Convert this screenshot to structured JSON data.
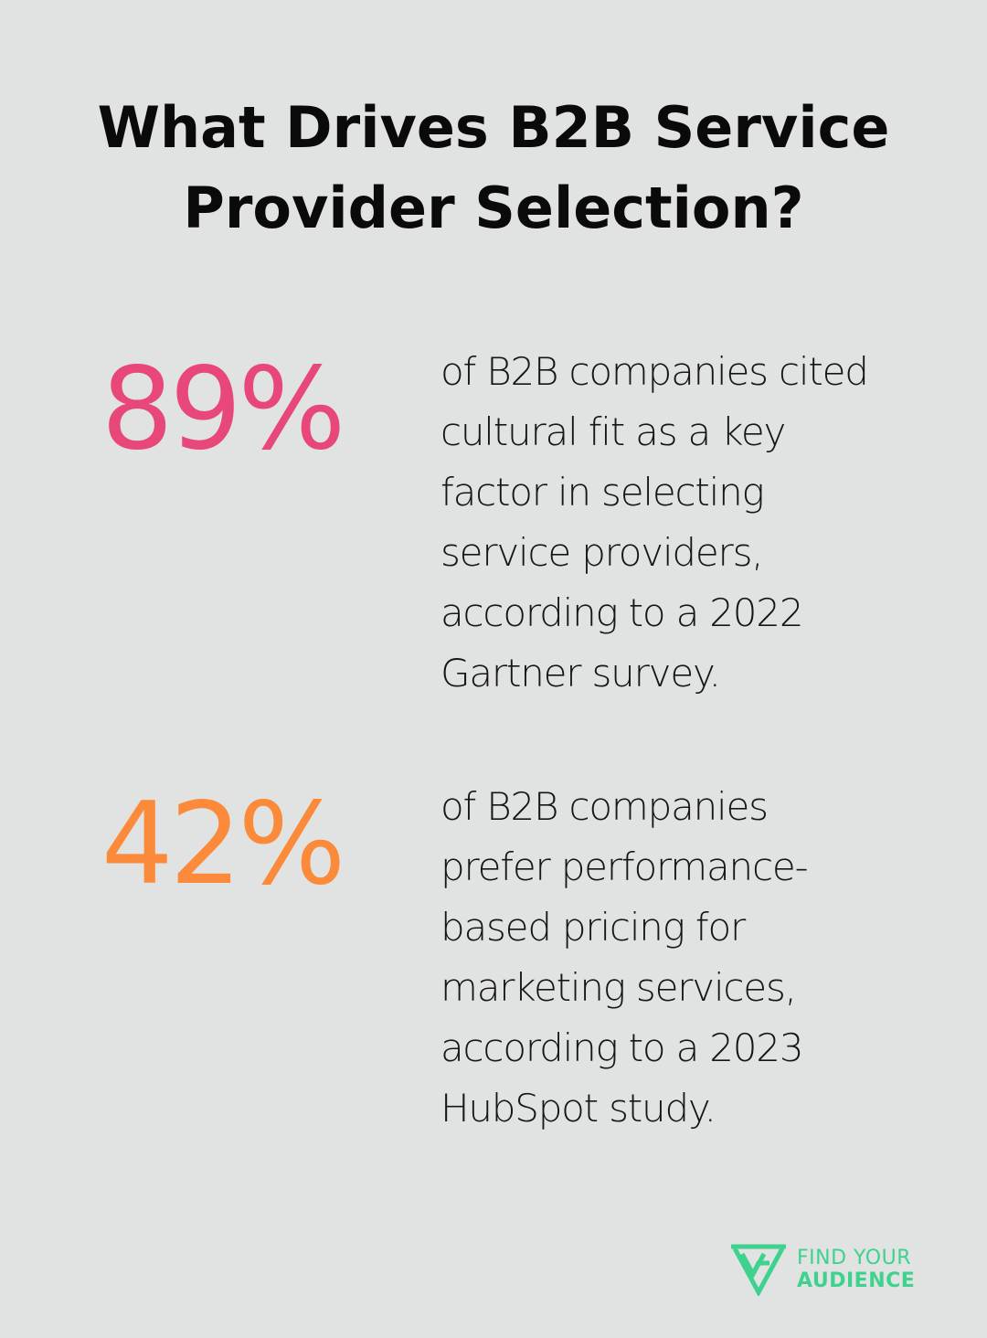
{
  "title": "What Drives B2B Service Provider Selection?",
  "stats": [
    {
      "value": "89%",
      "text": "of B2B companies cited\ncultural fit as a key\nfactor in selecting\nservice providers,\naccording to a 2022\nGartner survey.",
      "color": "#e8477a"
    },
    {
      "value": "42%",
      "text": "of B2B companies\nprefer performance-\nbased pricing for\nmarketing services,\naccording to a 2023\nHubSpot study.",
      "color": "#fb8b3b"
    }
  ],
  "logo": {
    "line1": "FIND YOUR",
    "line2": "AUDIENCE",
    "icon": "find-your-audience-logo-icon",
    "color": "#3fd18e"
  }
}
